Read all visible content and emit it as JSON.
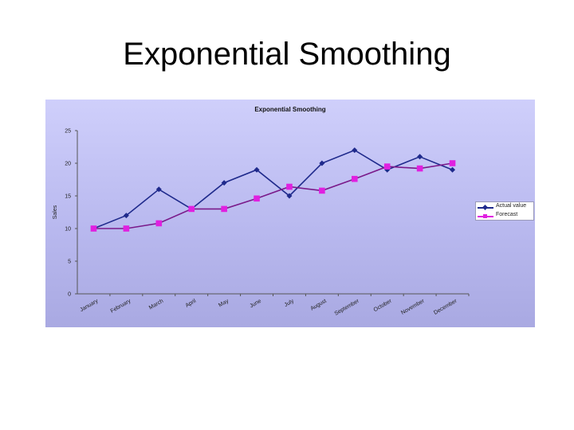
{
  "page": {
    "title": "Exponential Smoothing"
  },
  "chart_data": {
    "type": "line",
    "title": "Exponential Smoothing",
    "xlabel": "",
    "ylabel": "Sales",
    "ylim": [
      0,
      25
    ],
    "yticks": [
      0,
      5,
      10,
      15,
      20,
      25
    ],
    "grid": false,
    "legend_position": "right",
    "categories": [
      "January",
      "February",
      "March",
      "April",
      "May",
      "June",
      "July",
      "August",
      "September",
      "October",
      "November",
      "December"
    ],
    "series": [
      {
        "name": "Actual value",
        "color": "#1f2a8c",
        "marker": "diamond",
        "values": [
          10,
          12,
          16,
          13,
          17,
          19,
          15,
          20,
          22,
          19,
          21,
          19
        ]
      },
      {
        "name": "Forecast",
        "color": "#e020e0",
        "line_color": "#7a1a8a",
        "marker": "square",
        "values": [
          10,
          10,
          10.8,
          13,
          13,
          14.6,
          16.4,
          15.8,
          17.6,
          19.5,
          19.2,
          20
        ]
      }
    ]
  }
}
